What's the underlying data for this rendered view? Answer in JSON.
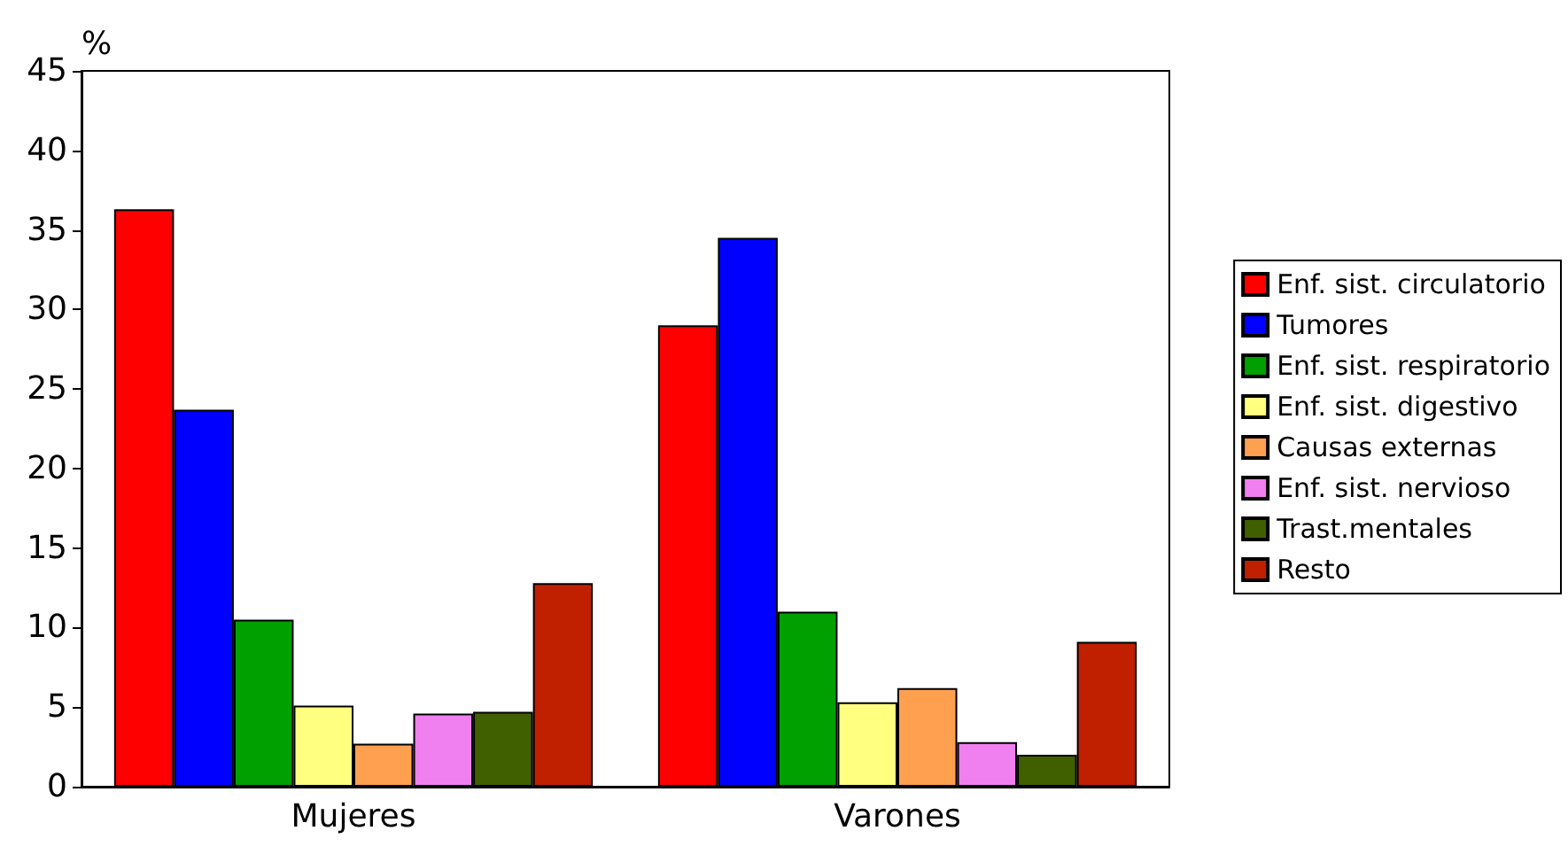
{
  "chart_data": {
    "type": "bar",
    "ylabel": "%",
    "categories": [
      "Mujeres",
      "Varones"
    ],
    "series": [
      {
        "name": "Enf. sist. circulatorio",
        "color": "#ff0000",
        "values": [
          36.3,
          29.0
        ]
      },
      {
        "name": "Tumores",
        "color": "#0000ff",
        "values": [
          23.7,
          34.5
        ]
      },
      {
        "name": "Enf. sist. respiratorio",
        "color": "#00a000",
        "values": [
          10.5,
          11.0
        ]
      },
      {
        "name": "Enf. sist. digestivo",
        "color": "#ffff80",
        "values": [
          5.1,
          5.3
        ]
      },
      {
        "name": "Causas externas",
        "color": "#ffa050",
        "values": [
          2.7,
          6.2
        ]
      },
      {
        "name": "Enf. sist. nervioso",
        "color": "#f080f0",
        "values": [
          4.6,
          2.8
        ]
      },
      {
        "name": "Trast.mentales",
        "color": "#406000",
        "values": [
          4.7,
          2.0
        ]
      },
      {
        "name": "Resto",
        "color": "#c02000",
        "values": [
          12.8,
          9.1
        ]
      }
    ],
    "ylim": [
      0,
      45
    ],
    "yticks": [
      0,
      5,
      10,
      15,
      20,
      25,
      30,
      35,
      40,
      45
    ],
    "grid": false,
    "legend": "right"
  }
}
